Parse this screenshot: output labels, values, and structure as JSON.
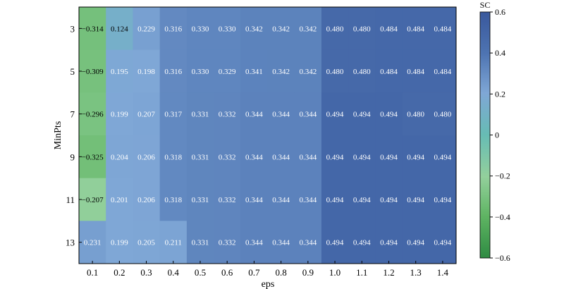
{
  "chart_data": {
    "type": "heatmap",
    "title": "",
    "xlabel": "eps",
    "ylabel": "MinPts",
    "x_categories": [
      "0.1",
      "0.2",
      "0.3",
      "0.4",
      "0.5",
      "0.6",
      "0.7",
      "0.8",
      "0.9",
      "1.0",
      "1.1",
      "1.2",
      "1.3",
      "1.4"
    ],
    "y_categories": [
      "3",
      "5",
      "7",
      "9",
      "11",
      "13"
    ],
    "values": [
      [
        -0.314,
        0.124,
        0.229,
        0.316,
        0.33,
        0.33,
        0.342,
        0.342,
        0.342,
        0.48,
        0.48,
        0.484,
        0.484,
        0.484
      ],
      [
        -0.309,
        0.195,
        0.198,
        0.316,
        0.33,
        0.329,
        0.341,
        0.342,
        0.342,
        0.48,
        0.48,
        0.484,
        0.484,
        0.484
      ],
      [
        -0.296,
        0.199,
        0.207,
        0.317,
        0.331,
        0.332,
        0.344,
        0.344,
        0.344,
        0.494,
        0.494,
        0.494,
        0.48,
        0.48
      ],
      [
        -0.325,
        0.204,
        0.206,
        0.318,
        0.331,
        0.332,
        0.344,
        0.344,
        0.344,
        0.494,
        0.494,
        0.494,
        0.494,
        0.494
      ],
      [
        -0.207,
        0.201,
        0.206,
        0.318,
        0.331,
        0.332,
        0.344,
        0.344,
        0.344,
        0.494,
        0.494,
        0.494,
        0.494,
        0.494
      ],
      [
        0.231,
        0.199,
        0.205,
        0.211,
        0.331,
        0.332,
        0.344,
        0.344,
        0.344,
        0.494,
        0.494,
        0.494,
        0.494,
        0.494
      ]
    ],
    "colorbar": {
      "label": "SC",
      "range": [
        -0.6,
        0.6
      ],
      "ticks": [
        0.6,
        0.4,
        0.2,
        0,
        -0.2,
        -0.4,
        -0.6
      ],
      "tick_labels": [
        "0.6",
        "0.4",
        "0.2",
        "0",
        "−0.2",
        "−0.4",
        "−0.6"
      ],
      "colormap": [
        "#2e8b42",
        "#5fb463",
        "#93d09c",
        "#67bcb4",
        "#7fa7d6",
        "#4e74b2",
        "#39589c"
      ]
    }
  }
}
